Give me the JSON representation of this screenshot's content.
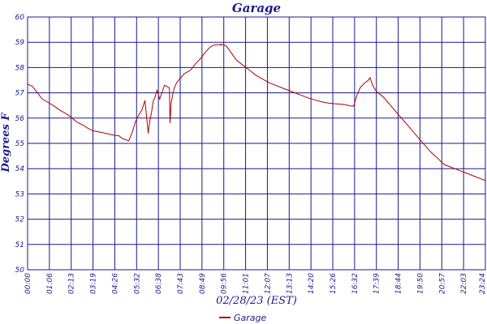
{
  "chart_data": {
    "type": "line",
    "title": "Garage",
    "xlabel": "02/28/23 (EST)",
    "ylabel": "Degrees F",
    "ylim": [
      50,
      60
    ],
    "grid": true,
    "legend_position": "bottom-center",
    "colors": {
      "series": "#aa0000",
      "grid": "#1a1a8c",
      "text": "#1a1a8c",
      "frame": "#1a1a8c"
    },
    "y_ticks": [
      "50",
      "51",
      "52",
      "53",
      "54",
      "55",
      "56",
      "57",
      "58",
      "59",
      "60"
    ],
    "x_ticks": [
      "00:00",
      "01:06",
      "02:13",
      "03:19",
      "04:26",
      "05:32",
      "06:38",
      "07:43",
      "08:49",
      "09:56",
      "11:01",
      "12:07",
      "13:13",
      "14:20",
      "15:26",
      "16:32",
      "17:39",
      "18:44",
      "19:50",
      "20:57",
      "22:03",
      "23:24"
    ],
    "series": [
      {
        "name": "Garage",
        "x": [
          0,
          15,
          30,
          45,
          66,
          85,
          100,
          115,
          132,
          150,
          170,
          185,
          200,
          220,
          245,
          265,
          280,
          290,
          300,
          310,
          320,
          332,
          340,
          350,
          360,
          370,
          375,
          380,
          383,
          386,
          390,
          397,
          405,
          420,
          435,
          437,
          440,
          443,
          446,
          450,
          455,
          460,
          470,
          480,
          500,
          515,
          530,
          545,
          555,
          565,
          575,
          585,
          590,
          592,
          596,
          602,
          610,
          640,
          660,
          680,
          700,
          720,
          740,
          760,
          780,
          800,
          820,
          840,
          860,
          880,
          900,
          920,
          940,
          960,
          975,
          985,
          990,
          1000,
          1010,
          1020,
          1030,
          1040,
          1045,
          1050,
          1060,
          1070,
          1080,
          1090,
          1100,
          1110,
          1120,
          1130,
          1140,
          1150,
          1160,
          1170,
          1180,
          1190,
          1200,
          1210,
          1220,
          1230,
          1240,
          1250,
          1260,
          1270,
          1280,
          1290,
          1300,
          1310,
          1320,
          1330,
          1340,
          1350,
          1360,
          1370,
          1380,
          1390,
          1404
        ],
        "values": [
          57.35,
          57.25,
          57.0,
          56.75,
          56.6,
          56.45,
          56.3,
          56.2,
          56.05,
          55.85,
          55.72,
          55.6,
          55.5,
          55.45,
          55.38,
          55.32,
          55.3,
          55.2,
          55.15,
          55.1,
          55.4,
          55.9,
          56.1,
          56.3,
          56.7,
          55.4,
          55.9,
          56.2,
          56.5,
          56.7,
          56.8,
          57.1,
          56.75,
          57.3,
          57.2,
          55.8,
          56.6,
          56.8,
          57.0,
          57.2,
          57.35,
          57.45,
          57.6,
          57.75,
          57.9,
          58.15,
          58.35,
          58.6,
          58.75,
          58.85,
          58.9,
          58.9,
          58.92,
          58.88,
          58.92,
          58.9,
          58.85,
          58.3,
          58.1,
          57.9,
          57.7,
          57.55,
          57.4,
          57.3,
          57.2,
          57.1,
          57.0,
          56.9,
          56.8,
          56.72,
          56.65,
          56.6,
          56.57,
          56.55,
          56.53,
          56.5,
          56.48,
          56.47,
          56.9,
          57.2,
          57.35,
          57.45,
          57.5,
          57.6,
          57.25,
          57.05,
          56.95,
          56.85,
          56.7,
          56.55,
          56.4,
          56.25,
          56.1,
          55.95,
          55.8,
          55.65,
          55.5,
          55.35,
          55.2,
          55.05,
          54.9,
          54.75,
          54.62,
          54.5,
          54.38,
          54.25,
          54.15,
          54.1,
          54.05,
          54.0,
          53.95,
          53.9,
          53.85,
          53.8,
          53.75,
          53.7,
          53.65,
          53.6,
          53.53
        ]
      }
    ]
  }
}
